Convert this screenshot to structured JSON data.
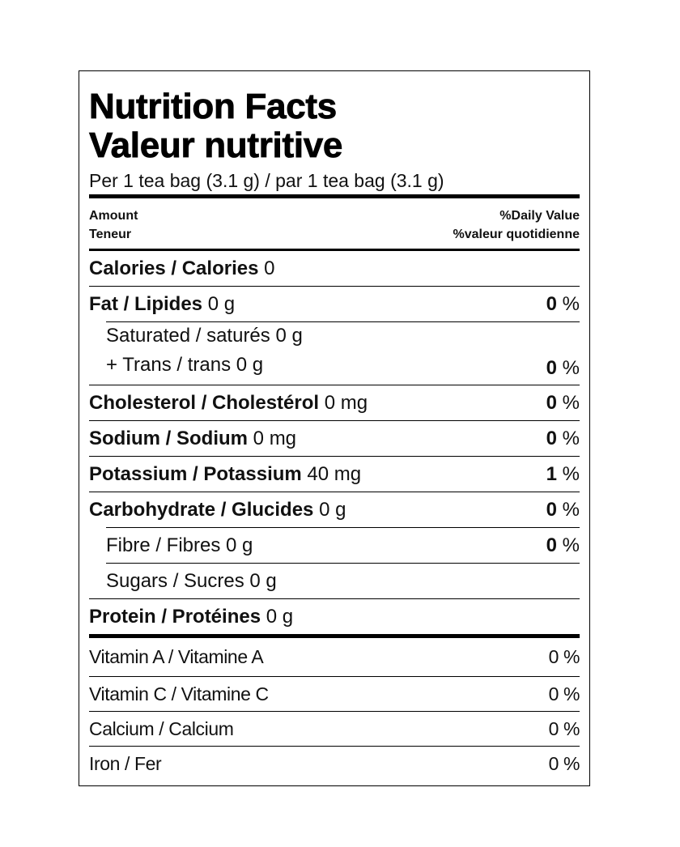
{
  "header": {
    "title": [
      "Nutrition Facts",
      "Valeur nutritive"
    ],
    "serving": "Per 1 tea bag (3.1 g) / par 1 tea bag (3.1 g)"
  },
  "columns": {
    "amount": [
      "Amount",
      "Teneur"
    ],
    "daily_value": [
      "%Daily Value",
      "%valeur quotidienne"
    ]
  },
  "nutrients": [
    {
      "label": "Calories / Calories",
      "amount": "0"
    },
    {
      "label": "Fat / Lipides",
      "amount": "0 g",
      "dv": "0",
      "unit": "%"
    },
    {
      "lines": [
        "Saturated / saturés 0 g",
        "+ Trans / trans 0 g"
      ],
      "dv": "0",
      "unit": "%",
      "indent": true
    },
    {
      "label": "Cholesterol / Cholestérol",
      "amount": "0 mg",
      "dv": "0",
      "unit": "%"
    },
    {
      "label": "Sodium / Sodium",
      "amount": "0 mg",
      "dv": "0",
      "unit": "%"
    },
    {
      "label": "Potassium / Potassium",
      "amount": "40 mg",
      "dv": "1",
      "unit": "%"
    },
    {
      "label": "Carbohydrate / Glucides",
      "amount": "0 g",
      "dv": "0",
      "unit": "%"
    },
    {
      "lines": [
        "Fibre / Fibres 0 g"
      ],
      "dv": "0",
      "unit": "%",
      "indent": true
    },
    {
      "lines": [
        "Sugars / Sucres 0 g"
      ],
      "indent": true
    },
    {
      "label": "Protein / Protéines",
      "amount": "0 g"
    }
  ],
  "vitamins": [
    {
      "label": "Vitamin A / Vitamine A",
      "dv": "0 %"
    },
    {
      "label": "Vitamin C / Vitamine C",
      "dv": "0 %"
    },
    {
      "label": "Calcium / Calcium",
      "dv": "0 %"
    },
    {
      "label": "Iron / Fer",
      "dv": "0 %"
    }
  ]
}
